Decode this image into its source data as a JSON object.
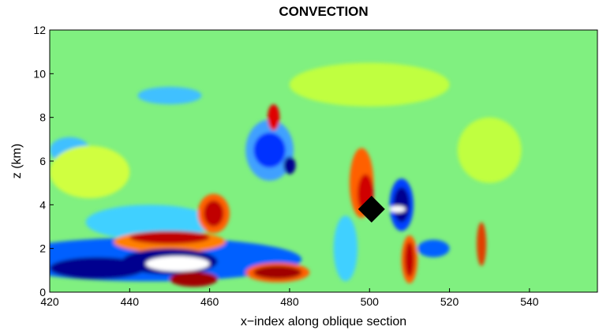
{
  "chart_data": {
    "type": "contour",
    "title": "CONVECTION",
    "x_label": "x−index along oblique section",
    "y_label": "z (km)",
    "xlim": [
      420,
      557
    ],
    "ylim": [
      0,
      12
    ],
    "xticks": [
      420,
      440,
      460,
      480,
      500,
      520,
      540
    ],
    "yticks": [
      0,
      2,
      4,
      6,
      8,
      10,
      12
    ],
    "background": "#80f080",
    "regions": [
      {
        "x": 445,
        "y": 3.2,
        "rx": 16,
        "ry": 0.8,
        "color": "#40d0ff"
      },
      {
        "x": 425,
        "y": 6.5,
        "rx": 5,
        "ry": 0.6,
        "color": "#40c0ff"
      },
      {
        "x": 450,
        "y": 9.0,
        "rx": 8,
        "ry": 0.4,
        "color": "#40c0ff"
      },
      {
        "x": 530,
        "y": 6.5,
        "rx": 8,
        "ry": 1.5,
        "color": "#c0ff40"
      },
      {
        "x": 430,
        "y": 5.5,
        "rx": 10,
        "ry": 1.2,
        "color": "#d0ff40"
      },
      {
        "x": 500,
        "y": 9.5,
        "rx": 20,
        "ry": 1.0,
        "color": "#c0ff40"
      },
      {
        "x": 445,
        "y": 1.5,
        "rx": 38,
        "ry": 1.0,
        "color": "#0060ff"
      },
      {
        "x": 450,
        "y": 2.3,
        "rx": 14,
        "ry": 0.5,
        "color": "#ff8000"
      },
      {
        "x": 450,
        "y": 2.5,
        "rx": 10,
        "ry": 0.3,
        "color": "#c00000"
      },
      {
        "x": 461,
        "y": 3.6,
        "rx": 4,
        "ry": 0.9,
        "color": "#ff6000"
      },
      {
        "x": 461,
        "y": 3.6,
        "rx": 2.5,
        "ry": 0.6,
        "color": "#c00000"
      },
      {
        "x": 432,
        "y": 1.1,
        "rx": 12,
        "ry": 0.5,
        "color": "#00008f"
      },
      {
        "x": 450,
        "y": 1.4,
        "rx": 12,
        "ry": 0.6,
        "color": "#00008f"
      },
      {
        "x": 452,
        "y": 1.3,
        "rx": 8,
        "ry": 0.35,
        "color": "#ffffff"
      },
      {
        "x": 456,
        "y": 0.6,
        "rx": 6,
        "ry": 0.35,
        "color": "#a00000"
      },
      {
        "x": 477,
        "y": 0.9,
        "rx": 8,
        "ry": 0.45,
        "color": "#ff6000"
      },
      {
        "x": 477,
        "y": 0.9,
        "rx": 6,
        "ry": 0.3,
        "color": "#a00000"
      },
      {
        "x": 475,
        "y": 6.5,
        "rx": 6,
        "ry": 1.4,
        "color": "#40a0ff"
      },
      {
        "x": 475,
        "y": 6.5,
        "rx": 4,
        "ry": 0.8,
        "color": "#0030ff"
      },
      {
        "x": 480,
        "y": 5.8,
        "rx": 1.5,
        "ry": 0.4,
        "color": "#00008f"
      },
      {
        "x": 476,
        "y": 8.0,
        "rx": 1.5,
        "ry": 0.6,
        "color": "#e00000"
      },
      {
        "x": 498,
        "y": 5.0,
        "rx": 3,
        "ry": 1.6,
        "color": "#ff6000"
      },
      {
        "x": 499,
        "y": 4.5,
        "rx": 2,
        "ry": 0.9,
        "color": "#d00000"
      },
      {
        "x": 508,
        "y": 4.0,
        "rx": 3,
        "ry": 1.2,
        "color": "#0040ff"
      },
      {
        "x": 508,
        "y": 4.0,
        "rx": 2,
        "ry": 0.8,
        "color": "#00008f"
      },
      {
        "x": 507,
        "y": 3.8,
        "rx": 2,
        "ry": 0.15,
        "color": "#ffffff"
      },
      {
        "x": 510,
        "y": 1.5,
        "rx": 2,
        "ry": 1.1,
        "color": "#ff6000"
      },
      {
        "x": 510,
        "y": 1.5,
        "rx": 1.2,
        "ry": 0.8,
        "color": "#c00000"
      },
      {
        "x": 516,
        "y": 2.0,
        "rx": 4,
        "ry": 0.4,
        "color": "#0060ff"
      },
      {
        "x": 528,
        "y": 2.2,
        "rx": 1.2,
        "ry": 1.0,
        "color": "#e04000"
      },
      {
        "x": 494,
        "y": 2.0,
        "rx": 3,
        "ry": 1.5,
        "color": "#40d0ff"
      }
    ],
    "marker": {
      "x": 500.5,
      "y": 3.8,
      "color": "#000000"
    }
  }
}
